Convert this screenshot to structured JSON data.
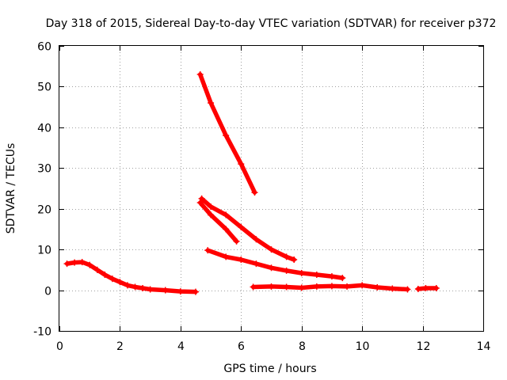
{
  "chart_data": {
    "type": "scatter",
    "title": "Day 318 of 2015, Sidereal Day-to-day VTEC variation (SDTVAR) for receiver p372",
    "xlabel": "GPS time / hours",
    "ylabel": "SDTVAR / TECUs",
    "xlim": [
      0,
      14
    ],
    "ylim": [
      -10,
      60
    ],
    "xticks": [
      "0",
      "2",
      "4",
      "6",
      "8",
      "10",
      "12",
      "14"
    ],
    "yticks": [
      "-10",
      "0",
      "10",
      "20",
      "30",
      "40",
      "50",
      "60"
    ],
    "grid": true,
    "colors": {
      "series": "#ff0000",
      "grid": "#a0a0a0",
      "axis": "#000000"
    },
    "segments": [
      {
        "x": [
          0.25,
          0.5,
          0.75,
          1.0,
          1.25,
          1.5,
          1.75,
          2.0,
          2.25,
          2.5,
          2.75,
          3.0,
          3.5,
          4.0,
          4.5
        ],
        "y": [
          6.5,
          6.8,
          6.9,
          6.2,
          5.0,
          3.8,
          2.8,
          2.0,
          1.2,
          0.8,
          0.5,
          0.2,
          0.0,
          -0.3,
          -0.4
        ]
      },
      {
        "x": [
          4.65,
          5.0,
          5.5,
          6.0,
          6.45
        ],
        "y": [
          53.0,
          46.0,
          38.0,
          31.0,
          24.0
        ]
      },
      {
        "x": [
          4.65,
          5.0,
          5.5,
          5.85
        ],
        "y": [
          21.5,
          18.5,
          15.0,
          12.0
        ]
      },
      {
        "x": [
          4.7,
          5.0,
          5.5,
          6.0,
          6.5,
          7.0,
          7.5,
          7.75
        ],
        "y": [
          22.5,
          20.5,
          18.5,
          15.5,
          12.5,
          10.0,
          8.2,
          7.5
        ]
      },
      {
        "x": [
          4.9,
          5.5,
          6.0,
          6.5,
          7.0,
          7.5,
          8.0,
          8.5,
          9.0,
          9.35
        ],
        "y": [
          9.8,
          8.2,
          7.5,
          6.5,
          5.5,
          4.8,
          4.2,
          3.8,
          3.4,
          3.0
        ]
      },
      {
        "x": [
          6.4,
          7.0,
          7.5,
          8.0,
          8.5,
          9.0,
          9.5,
          10.0,
          10.5,
          11.0,
          11.5
        ],
        "y": [
          0.8,
          0.9,
          0.8,
          0.6,
          0.9,
          1.0,
          0.9,
          1.2,
          0.7,
          0.4,
          0.2
        ]
      },
      {
        "x": [
          11.85,
          12.1,
          12.45
        ],
        "y": [
          0.3,
          0.5,
          0.5
        ]
      }
    ]
  }
}
